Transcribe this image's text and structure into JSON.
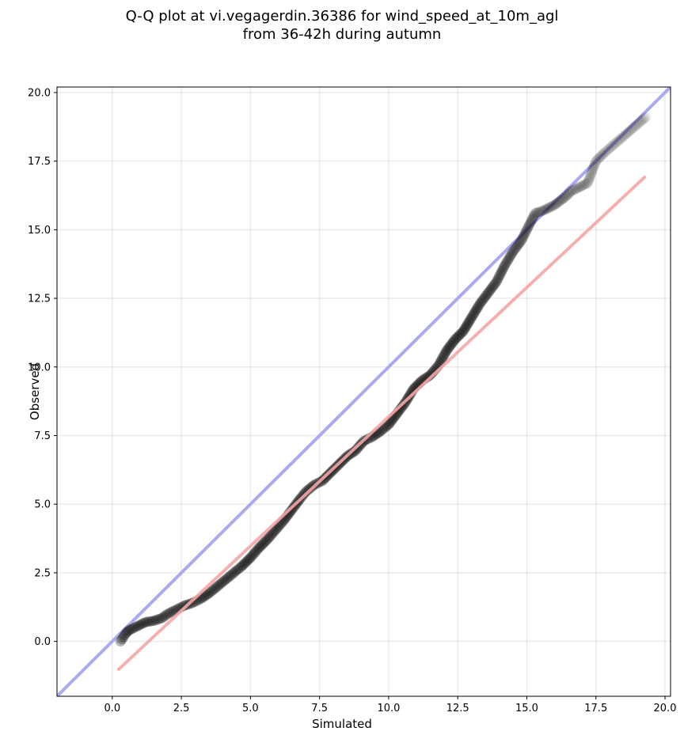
{
  "chart_data": {
    "type": "scatter",
    "title_line1": "Q-Q plot at vi.vegagerdin.36386 for wind_speed_at_10m_agl",
    "title_line2": "from 36-42h during autumn",
    "xlabel": "Simulated",
    "ylabel": "Observed",
    "xlim": [
      -2.0,
      20.2
    ],
    "ylim": [
      -2.0,
      20.2
    ],
    "xticks": [
      "0.0",
      "2.5",
      "5.0",
      "7.5",
      "10.0",
      "12.5",
      "15.0",
      "17.5",
      "20.0"
    ],
    "yticks": [
      "0.0",
      "2.5",
      "5.0",
      "7.5",
      "10.0",
      "12.5",
      "15.0",
      "17.5",
      "20.0"
    ],
    "grid": true,
    "identity_line": {
      "color": "#aaaaf0",
      "from": [
        -2.0,
        -2.0
      ],
      "to": [
        20.2,
        20.2
      ]
    },
    "fit_line": {
      "color": "#f4a6a6",
      "from": [
        0.2,
        -1.05
      ],
      "to": [
        19.3,
        16.95
      ]
    },
    "quantiles": {
      "x": [
        0.3,
        0.4,
        0.5,
        0.6,
        0.8,
        1.0,
        1.2,
        1.5,
        1.8,
        2.0,
        2.3,
        2.6,
        2.9,
        3.2,
        3.5,
        3.8,
        4.1,
        4.4,
        4.7,
        5.0,
        5.3,
        5.6,
        5.9,
        6.2,
        6.5,
        6.8,
        7.0,
        7.3,
        7.6,
        7.9,
        8.2,
        8.5,
        8.8,
        9.1,
        9.4,
        9.7,
        10.0,
        10.3,
        10.6,
        10.9,
        11.2,
        11.5,
        11.8,
        12.1,
        12.4,
        12.7,
        13.0,
        13.3,
        13.6,
        13.9,
        14.2,
        14.5,
        14.8,
        15.0,
        15.3,
        15.6,
        16.0,
        16.4,
        16.6,
        17.2,
        17.5,
        17.8,
        19.3
      ],
      "y": [
        0.0,
        0.15,
        0.3,
        0.4,
        0.5,
        0.6,
        0.7,
        0.75,
        0.85,
        1.0,
        1.15,
        1.3,
        1.4,
        1.55,
        1.75,
        2.0,
        2.25,
        2.5,
        2.75,
        3.05,
        3.4,
        3.7,
        4.05,
        4.4,
        4.8,
        5.2,
        5.45,
        5.7,
        5.85,
        6.15,
        6.45,
        6.75,
        6.95,
        7.3,
        7.45,
        7.65,
        7.9,
        8.3,
        8.7,
        9.2,
        9.5,
        9.7,
        10.05,
        10.6,
        11.0,
        11.3,
        11.8,
        12.3,
        12.7,
        13.1,
        13.7,
        14.2,
        14.6,
        15.0,
        15.6,
        15.7,
        15.9,
        16.2,
        16.4,
        16.7,
        17.5,
        17.8,
        19.1
      ]
    },
    "point_color": "#000000"
  }
}
